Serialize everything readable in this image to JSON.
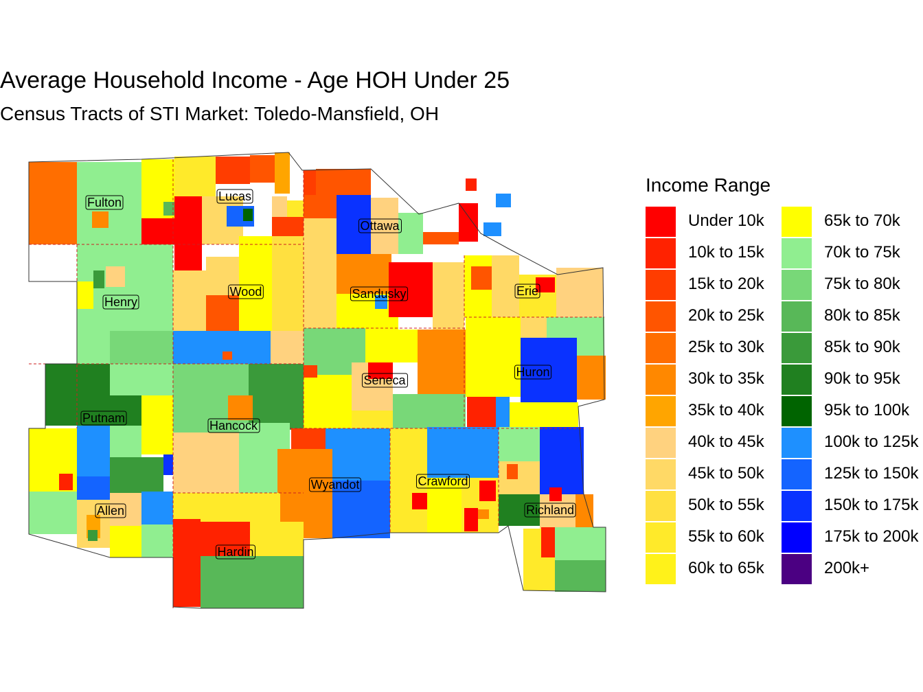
{
  "title": "Average Household Income - Age HOH Under 25",
  "subtitle": "Census Tracts of STI Market: Toledo-Mansfield, OH",
  "legend": {
    "title": "Income Range",
    "items": [
      {
        "label": "Under 10k",
        "color": "#ff0000"
      },
      {
        "label": "10k to 15k",
        "color": "#ff2200"
      },
      {
        "label": "15k to 20k",
        "color": "#ff3d00"
      },
      {
        "label": "20k to 25k",
        "color": "#ff5500"
      },
      {
        "label": "25k to 30k",
        "color": "#ff6e00"
      },
      {
        "label": "30k to 35k",
        "color": "#ff8800"
      },
      {
        "label": "35k to 40k",
        "color": "#ffa500"
      },
      {
        "label": "40k to 45k",
        "color": "#ffd27f"
      },
      {
        "label": "45k to 50k",
        "color": "#ffd966"
      },
      {
        "label": "50k to 55k",
        "color": "#ffe040"
      },
      {
        "label": "55k to 60k",
        "color": "#ffea2a"
      },
      {
        "label": "60k to 65k",
        "color": "#fff21a"
      },
      {
        "label": "65k to 70k",
        "color": "#ffff00"
      },
      {
        "label": "70k to 75k",
        "color": "#90ee90"
      },
      {
        "label": "75k to 80k",
        "color": "#78d878"
      },
      {
        "label": "80k to 85k",
        "color": "#58b858"
      },
      {
        "label": "85k to 90k",
        "color": "#3a9a3a"
      },
      {
        "label": "90k to 95k",
        "color": "#208020"
      },
      {
        "label": "95k to 100k",
        "color": "#006400"
      },
      {
        "label": "100k to 125k",
        "color": "#1e90ff"
      },
      {
        "label": "125k to 150k",
        "color": "#1464ff"
      },
      {
        "label": "150k to 175k",
        "color": "#0a32ff"
      },
      {
        "label": "175k to 200k",
        "color": "#0000ff"
      },
      {
        "label": "200k+",
        "color": "#4b0082"
      }
    ]
  },
  "counties": [
    {
      "name": "Fulton"
    },
    {
      "name": "Lucas"
    },
    {
      "name": "Ottawa"
    },
    {
      "name": "Henry"
    },
    {
      "name": "Wood"
    },
    {
      "name": "Sandusky"
    },
    {
      "name": "Erie"
    },
    {
      "name": "Seneca"
    },
    {
      "name": "Huron"
    },
    {
      "name": "Putnam"
    },
    {
      "name": "Hancock"
    },
    {
      "name": "Wyandot"
    },
    {
      "name": "Crawford"
    },
    {
      "name": "Allen"
    },
    {
      "name": "Richland"
    },
    {
      "name": "Hardin"
    }
  ]
}
